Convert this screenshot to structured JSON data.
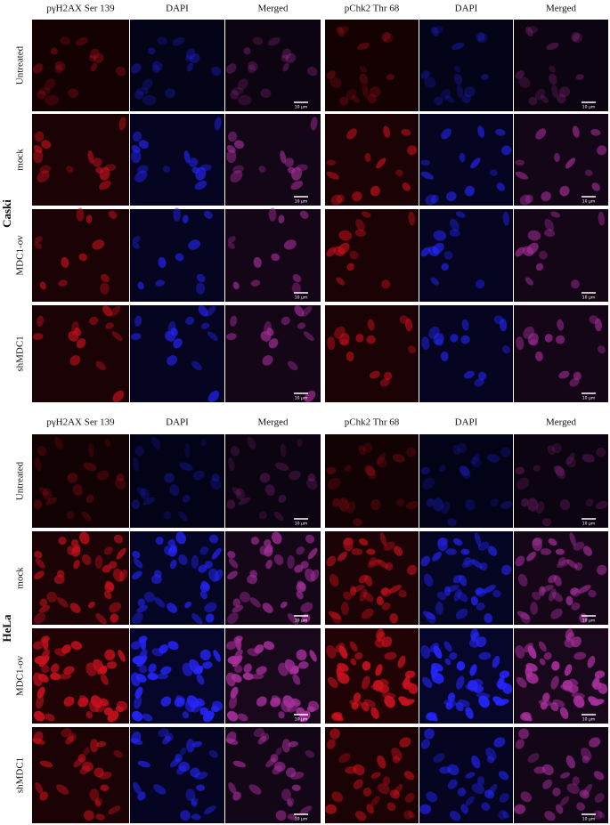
{
  "blocks": [
    {
      "label": "Caski",
      "groups": [
        {
          "columns": [
            "pγH2AX Ser 139",
            "DAPI",
            "Merged"
          ]
        },
        {
          "columns": [
            "pChk2 Thr 68",
            "DAPI",
            "Merged"
          ]
        }
      ],
      "rows": [
        "Untreated",
        "mock",
        "MDC1-ov",
        "shMDC1"
      ],
      "scale_bar": "10 μm"
    },
    {
      "label": "HeLa",
      "groups": [
        {
          "columns": [
            "pγH2AX Ser 139",
            "DAPI",
            "Merged"
          ]
        },
        {
          "columns": [
            "pChk2 Thr 68",
            "DAPI",
            "Merged"
          ]
        }
      ],
      "rows": [
        "Untreated",
        "mock",
        "MDC1-ov",
        "shMDC1"
      ],
      "scale_bar": "10 μm"
    }
  ]
}
